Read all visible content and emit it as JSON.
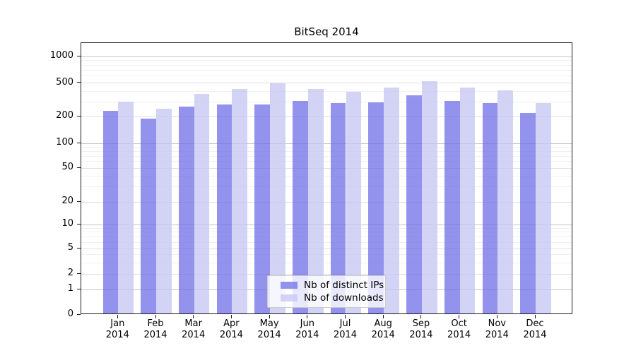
{
  "chart_data": {
    "type": "bar",
    "title": "BitSeq 2014",
    "year_label": "2014",
    "categories": [
      "Jan",
      "Feb",
      "Mar",
      "Apr",
      "May",
      "Jun",
      "Jul",
      "Aug",
      "Sep",
      "Oct",
      "Nov",
      "Dec"
    ],
    "series": [
      {
        "name": "Nb of distinct IPs",
        "color": "#6a6ae8",
        "values": [
          225,
          182,
          250,
          266,
          265,
          297,
          277,
          284,
          345,
          297,
          276,
          212
        ]
      },
      {
        "name": "Nb of downloads",
        "color": "#c6c6f4",
        "values": [
          291,
          237,
          359,
          407,
          483,
          406,
          381,
          428,
          510,
          422,
          397,
          276
        ]
      }
    ],
    "y_axis": {
      "scale": "symlog",
      "tick_labels": [
        "0",
        "1",
        "2",
        "5",
        "10",
        "20",
        "50",
        "100",
        "200",
        "500",
        "1000"
      ],
      "tick_values": [
        0,
        1,
        2,
        5,
        10,
        20,
        50,
        100,
        200,
        500,
        1000
      ],
      "major_gridlines": [
        1,
        10,
        100,
        1000
      ],
      "mid_gridlines": [
        2,
        5,
        20,
        50,
        200,
        500
      ],
      "minor_gridlines": [
        3,
        4,
        6,
        7,
        8,
        9,
        30,
        40,
        60,
        70,
        80,
        90,
        300,
        400,
        600,
        700,
        800,
        900
      ],
      "ylim": [
        0,
        1400
      ]
    },
    "x_axis": {
      "label_lines": 2
    },
    "legend": {
      "position": "lower-center"
    },
    "grid": true,
    "background_color": "#ffffff"
  }
}
